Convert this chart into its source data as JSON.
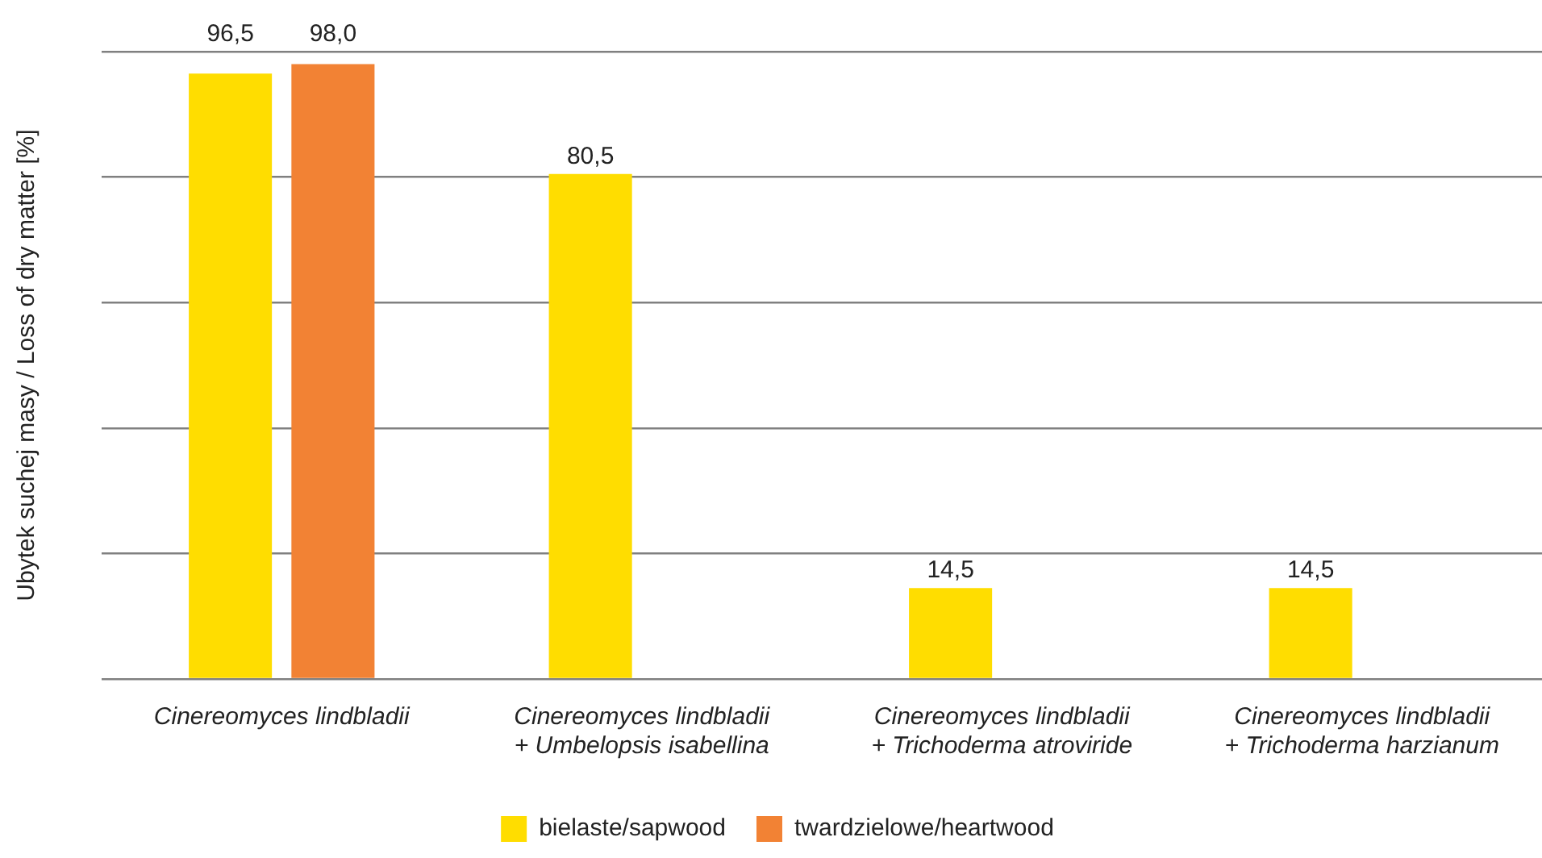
{
  "chart_data": {
    "type": "bar",
    "ylabel": "Ubytek suchej masy / Loss of dry matter [%]",
    "categories": [
      "Cinereomyces lindbladii",
      "Cinereomyces lindbladii\n+ Umbelopsis isabellina",
      "Cinereomyces lindbladii\n+ Trichoderma atroviride",
      "Cinereomyces lindbladii\n+ Trichoderma harzianum"
    ],
    "series": [
      {
        "name": "bielaste/sapwood",
        "color": "#ffdd00",
        "values": [
          96.5,
          80.5,
          14.5,
          14.5
        ],
        "value_labels": [
          "96,5",
          "80,5",
          "14,5",
          "14,5"
        ]
      },
      {
        "name": "twardzielowe/heartwood",
        "color": "#f28234",
        "values": [
          98.0,
          null,
          null,
          null
        ],
        "value_labels": [
          "98,0",
          null,
          null,
          null
        ]
      }
    ],
    "ylim": [
      0,
      100
    ],
    "yticks": [
      {
        "value": 0,
        "label": null
      },
      {
        "value": 20,
        "label": null
      },
      {
        "value": 40,
        "label": null
      },
      {
        "value": 60,
        "label": null
      },
      {
        "value": 80,
        "label": null
      },
      {
        "value": 100,
        "label": null
      }
    ],
    "grid": "y",
    "legend": "bottom",
    "tick_labels": "x"
  }
}
